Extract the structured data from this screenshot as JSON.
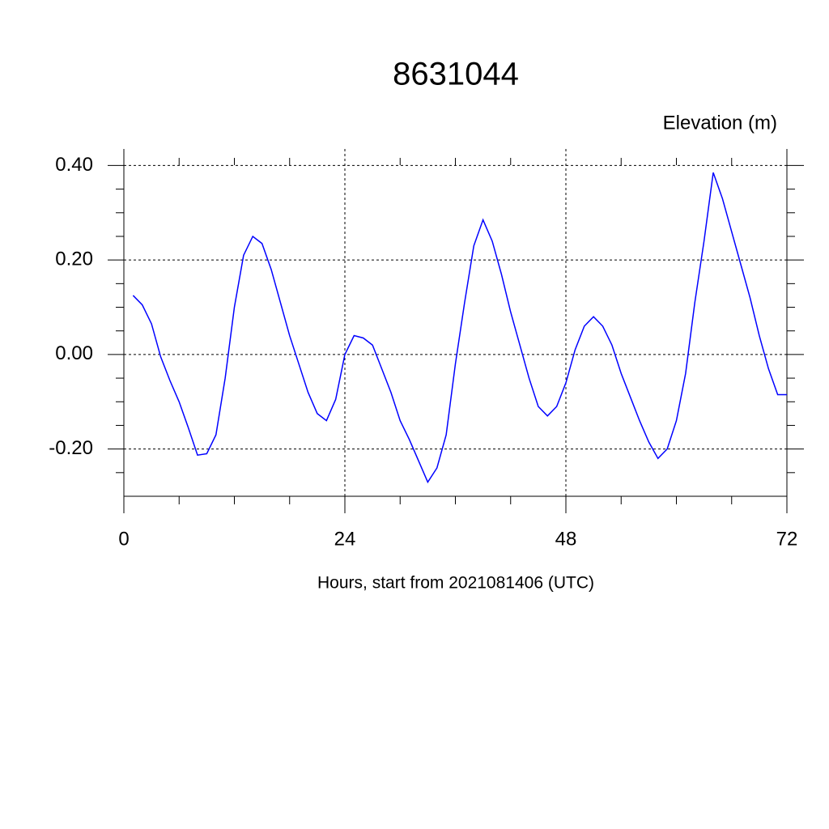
{
  "chart_data": {
    "type": "line",
    "title": "8631044",
    "y_label": "Elevation (m)",
    "x_label": "Hours, start from 2021081406 (UTC)",
    "x": [
      1,
      2,
      3,
      4,
      5,
      6,
      7,
      8,
      9,
      10,
      11,
      12,
      13,
      14,
      15,
      16,
      17,
      18,
      19,
      20,
      21,
      22,
      23,
      24,
      25,
      26,
      27,
      28,
      29,
      30,
      31,
      32,
      33,
      34,
      35,
      36,
      37,
      38,
      39,
      40,
      41,
      42,
      43,
      44,
      45,
      46,
      47,
      48,
      49,
      50,
      51,
      52,
      53,
      54,
      55,
      56,
      57,
      58,
      59,
      60,
      61,
      62,
      63,
      64,
      65,
      66,
      67,
      68,
      69,
      70,
      71,
      72
    ],
    "series": [
      {
        "color": "#0000ff",
        "values": [
          0.125,
          0.105,
          0.065,
          -0.005,
          -0.055,
          -0.1,
          -0.155,
          -0.213,
          -0.21,
          -0.17,
          -0.05,
          0.1,
          0.21,
          0.25,
          0.235,
          0.18,
          0.11,
          0.04,
          -0.02,
          -0.08,
          -0.125,
          -0.14,
          -0.095,
          0.0,
          0.04,
          0.035,
          0.02,
          -0.03,
          -0.08,
          -0.14,
          -0.18,
          -0.225,
          -0.27,
          -0.24,
          -0.17,
          -0.02,
          0.11,
          0.23,
          0.285,
          0.24,
          0.17,
          0.09,
          0.02,
          -0.05,
          -0.11,
          -0.13,
          -0.11,
          -0.06,
          0.01,
          0.06,
          0.08,
          0.06,
          0.02,
          -0.04,
          -0.09,
          -0.14,
          -0.185,
          -0.22,
          -0.2,
          -0.14,
          -0.04,
          0.11,
          0.24,
          0.385,
          0.33,
          0.26,
          0.19,
          0.12,
          0.04,
          -0.03,
          -0.085,
          -0.085
        ]
      }
    ],
    "xlim": [
      0,
      72
    ],
    "xticks": [
      0,
      24,
      48,
      72
    ],
    "x_minor_ticks": [
      6,
      12,
      18,
      30,
      36,
      42,
      54,
      60,
      66
    ],
    "ylim": [
      -0.3,
      0.435
    ],
    "yticks": [
      {
        "value": 0.4,
        "label": "0.40"
      },
      {
        "value": 0.2,
        "label": "0.20"
      },
      {
        "value": 0,
        "label": "0.00"
      },
      {
        "value": -0.2,
        "label": "-0.20"
      }
    ],
    "y_minor_ticks": [
      0.35,
      0.3,
      0.25,
      0.15,
      0.1,
      0.05,
      -0.05,
      -0.1,
      -0.15,
      -0.25
    ],
    "grid": true
  }
}
